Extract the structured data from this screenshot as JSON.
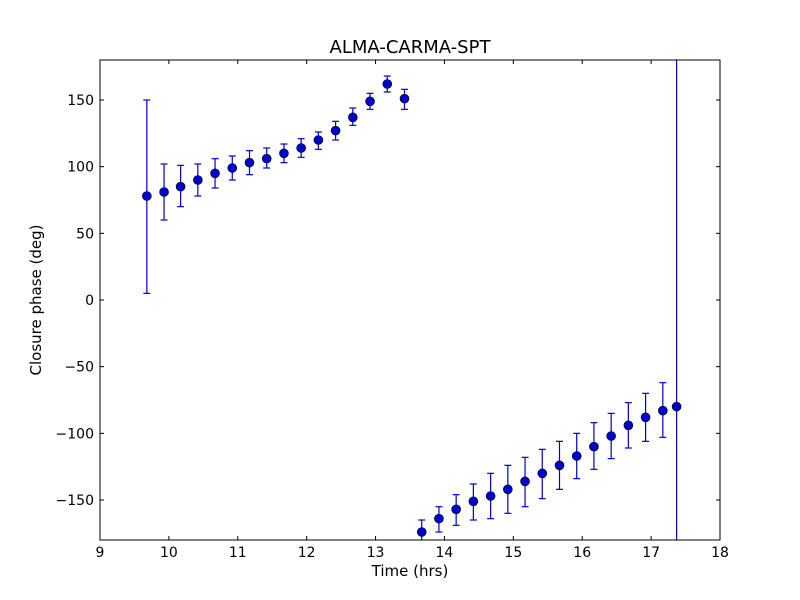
{
  "chart_data": {
    "type": "scatter",
    "title": "ALMA-CARMA-SPT",
    "xlabel": "Time (hrs)",
    "ylabel": "Closure phase (deg)",
    "xlim": [
      9,
      18
    ],
    "ylim": [
      -180,
      180
    ],
    "xticks": [
      "9",
      "10",
      "11",
      "12",
      "13",
      "14",
      "15",
      "16",
      "17",
      "18"
    ],
    "yticks": [
      "150",
      "100",
      "50",
      "0",
      "−50",
      "−100",
      "−150"
    ],
    "grid": false,
    "legend": "none",
    "color": "#0000cc",
    "points": [
      {
        "x": 9.68,
        "y": 78,
        "lo": 5,
        "hi": 150
      },
      {
        "x": 9.93,
        "y": 81,
        "lo": 60,
        "hi": 102
      },
      {
        "x": 10.17,
        "y": 85,
        "lo": 70,
        "hi": 101
      },
      {
        "x": 10.42,
        "y": 90,
        "lo": 78,
        "hi": 102
      },
      {
        "x": 10.67,
        "y": 95,
        "lo": 84,
        "hi": 106
      },
      {
        "x": 10.92,
        "y": 99,
        "lo": 90,
        "hi": 108
      },
      {
        "x": 11.17,
        "y": 103,
        "lo": 94,
        "hi": 112
      },
      {
        "x": 11.42,
        "y": 106,
        "lo": 99,
        "hi": 114
      },
      {
        "x": 11.67,
        "y": 110,
        "lo": 103,
        "hi": 117
      },
      {
        "x": 11.92,
        "y": 114,
        "lo": 107,
        "hi": 121
      },
      {
        "x": 12.17,
        "y": 120,
        "lo": 113,
        "hi": 126
      },
      {
        "x": 12.42,
        "y": 127,
        "lo": 120,
        "hi": 134
      },
      {
        "x": 12.67,
        "y": 137,
        "lo": 131,
        "hi": 144
      },
      {
        "x": 12.92,
        "y": 149,
        "lo": 143,
        "hi": 155
      },
      {
        "x": 13.17,
        "y": 162,
        "lo": 156,
        "hi": 168
      },
      {
        "x": 13.42,
        "y": 151,
        "lo": 143,
        "hi": 158
      },
      {
        "x": 13.67,
        "y": -174,
        "lo": -180,
        "hi": -165
      },
      {
        "x": 13.92,
        "y": -164,
        "lo": -174,
        "hi": -155
      },
      {
        "x": 14.17,
        "y": -157,
        "lo": -169,
        "hi": -146
      },
      {
        "x": 14.42,
        "y": -151,
        "lo": -165,
        "hi": -138
      },
      {
        "x": 14.67,
        "y": -147,
        "lo": -164,
        "hi": -130
      },
      {
        "x": 14.92,
        "y": -142,
        "lo": -160,
        "hi": -124
      },
      {
        "x": 15.17,
        "y": -136,
        "lo": -155,
        "hi": -118
      },
      {
        "x": 15.42,
        "y": -130,
        "lo": -149,
        "hi": -112
      },
      {
        "x": 15.67,
        "y": -124,
        "lo": -142,
        "hi": -106
      },
      {
        "x": 15.92,
        "y": -117,
        "lo": -134,
        "hi": -100
      },
      {
        "x": 16.17,
        "y": -110,
        "lo": -127,
        "hi": -92
      },
      {
        "x": 16.42,
        "y": -102,
        "lo": -119,
        "hi": -85
      },
      {
        "x": 16.67,
        "y": -94,
        "lo": -111,
        "hi": -77
      },
      {
        "x": 16.92,
        "y": -88,
        "lo": -106,
        "hi": -70
      },
      {
        "x": 17.17,
        "y": -83,
        "lo": -103,
        "hi": -62
      },
      {
        "x": 17.37,
        "y": -80,
        "lo": -180,
        "hi": 180
      }
    ]
  }
}
